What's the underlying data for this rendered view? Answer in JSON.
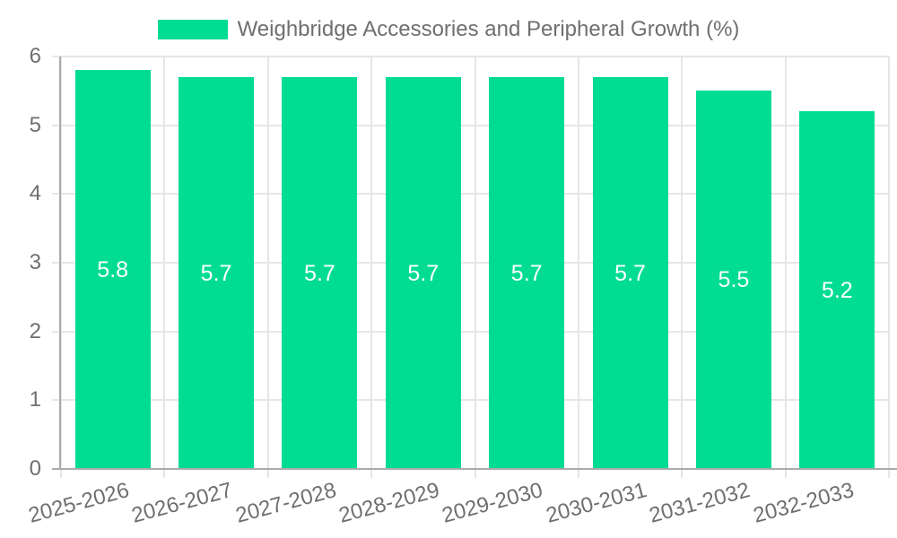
{
  "legend": {
    "label": "Weighbridge Accessories and Peripheral Growth (%)"
  },
  "colors": {
    "bar": "#00DC92",
    "grid": "#e6e6e6",
    "axis_border": "#ababab",
    "tick_text": "#6f6f6f",
    "value_label_text": "#ffffff",
    "background": "#ffffff"
  },
  "chart_data": {
    "type": "bar",
    "title": "",
    "xlabel": "",
    "ylabel": "",
    "categories": [
      "2025-2026",
      "2026-2027",
      "2027-2028",
      "2028-2029",
      "2029-2030",
      "2030-2031",
      "2031-2032",
      "2032-2033"
    ],
    "series": [
      {
        "name": "Weighbridge Accessories and Peripheral Growth (%)",
        "values": [
          5.8,
          5.7,
          5.7,
          5.7,
          5.7,
          5.7,
          5.5,
          5.2
        ]
      }
    ],
    "value_labels": [
      "5.8",
      "5.7",
      "5.7",
      "5.7",
      "5.7",
      "5.7",
      "5.5",
      "5.2"
    ],
    "ylim": [
      0,
      6
    ],
    "yticks": [
      0,
      1,
      2,
      3,
      4,
      5,
      6
    ],
    "grid": true,
    "legend_position": "top",
    "value_label_position": "inside-center",
    "xtick_rotation_deg": -15
  }
}
